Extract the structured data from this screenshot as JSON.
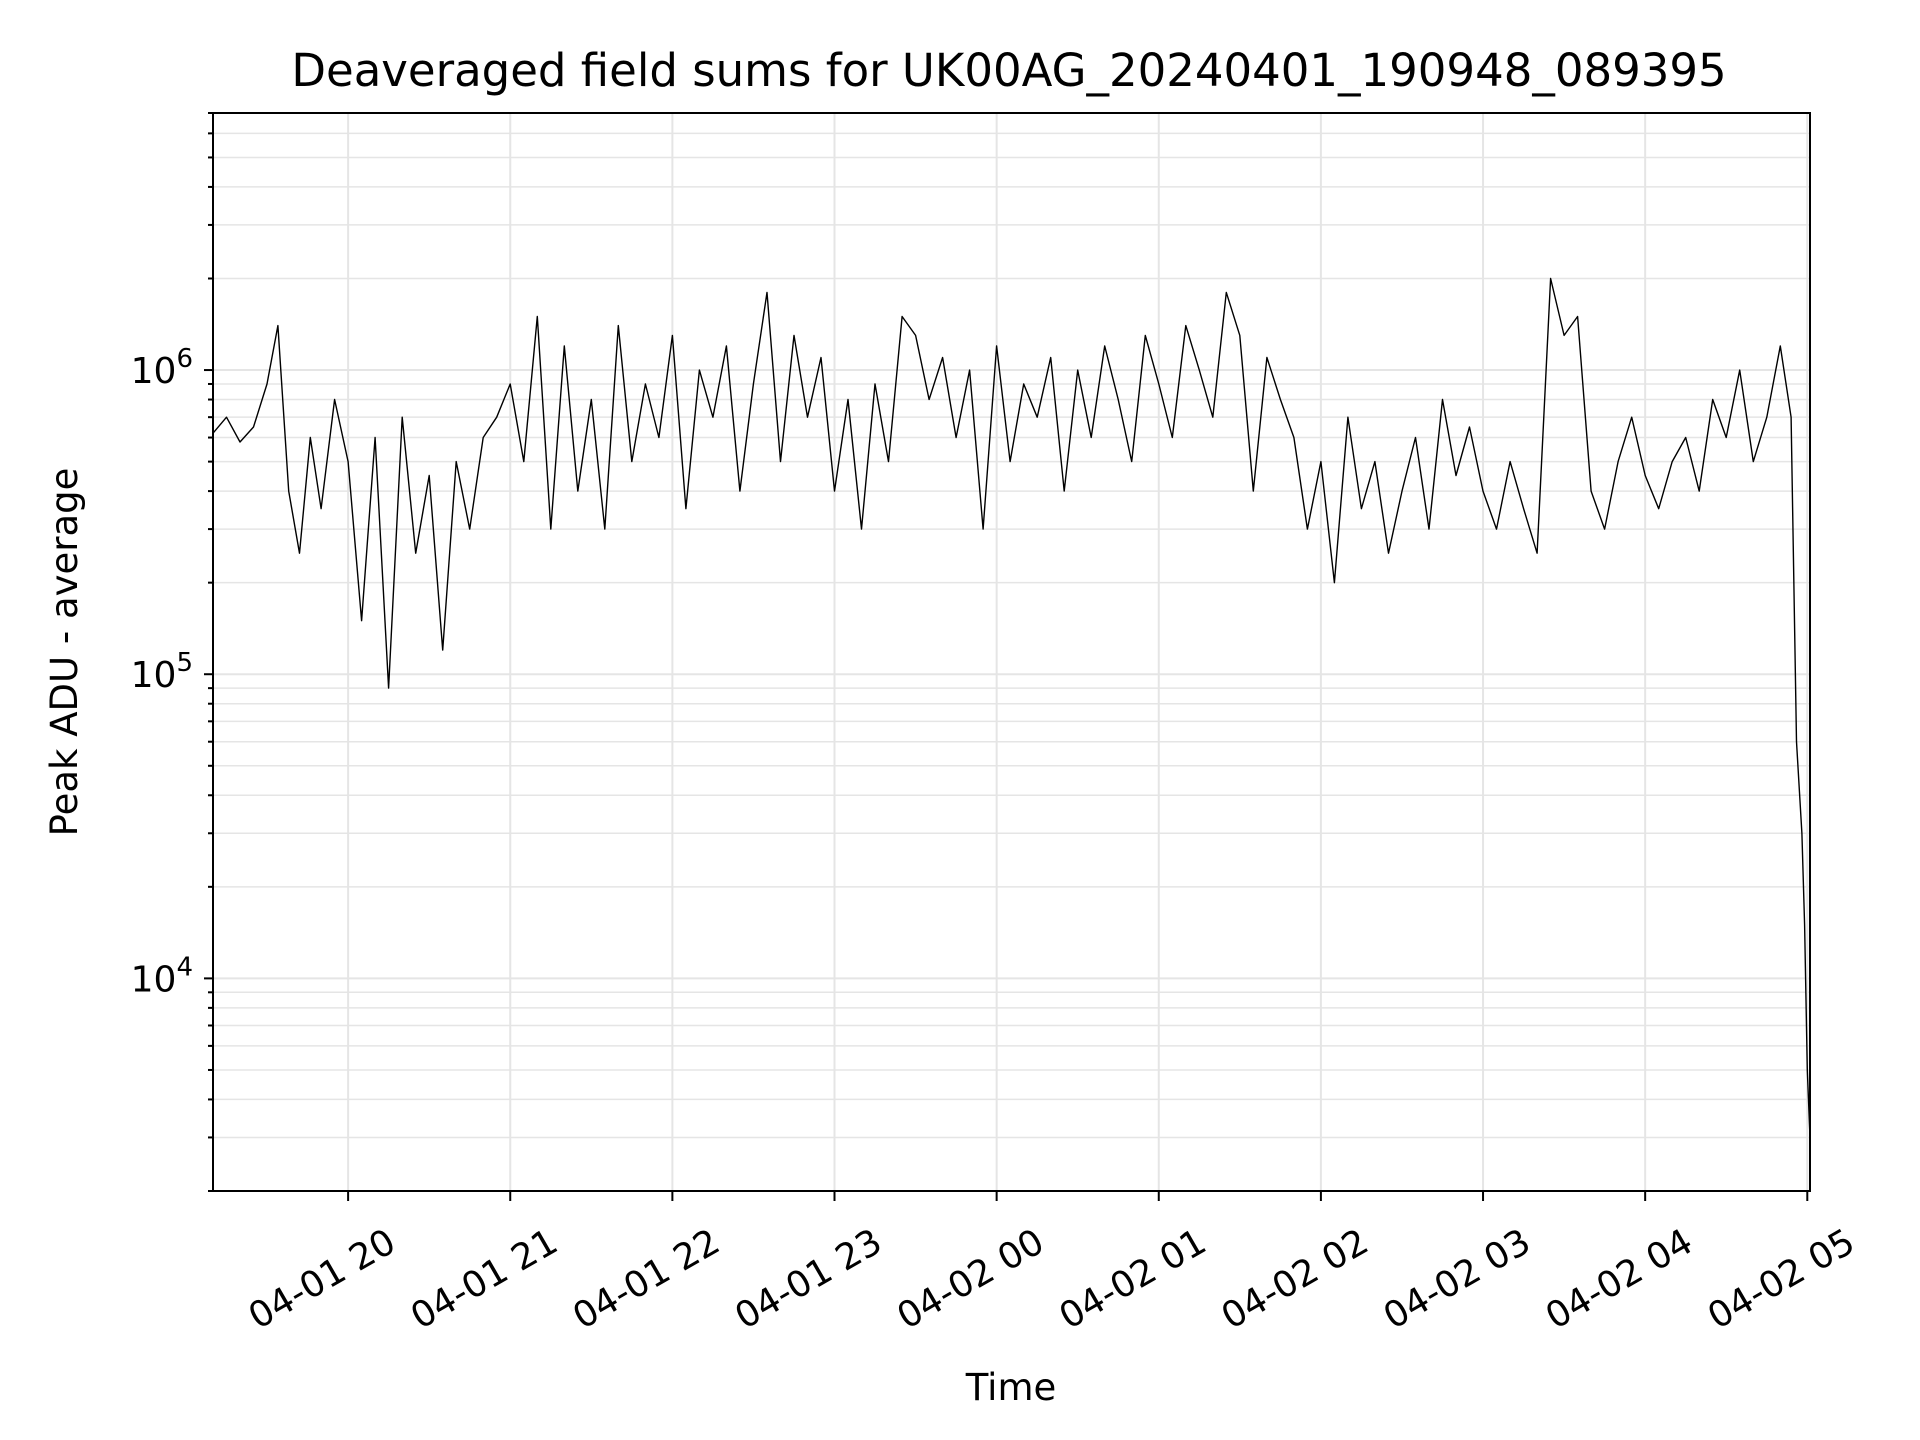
{
  "chart_data": {
    "type": "line",
    "title": "Deaveraged field sums for UK00AG_20240401_190948_089395",
    "xlabel": "Time",
    "ylabel": "Peak ADU - average",
    "xscale": "time",
    "yscale": "log",
    "x_range": [
      "2024-04-01 19:10",
      "2024-04-02 05:01"
    ],
    "y_range": [
      2000,
      7000000
    ],
    "x_tick_labels": [
      "04-01 20",
      "04-01 21",
      "04-01 22",
      "04-01 23",
      "04-02 00",
      "04-02 01",
      "04-02 02",
      "04-02 03",
      "04-02 04",
      "04-02 05"
    ],
    "y_tick_labels": [
      {
        "base": "10",
        "exp": "4"
      },
      {
        "base": "10",
        "exp": "5"
      },
      {
        "base": "10",
        "exp": "6"
      }
    ],
    "grid": true,
    "legend": "none",
    "line_color": "#000000",
    "grid_color": "#e5e5e5",
    "series": [
      {
        "x": [
          "2024-04-01 19:10",
          "2024-04-01 19:15",
          "2024-04-01 19:20",
          "2024-04-01 19:25",
          "2024-04-01 19:30",
          "2024-04-01 19:34",
          "2024-04-01 19:38",
          "2024-04-01 19:42",
          "2024-04-01 19:46",
          "2024-04-01 19:50",
          "2024-04-01 19:55",
          "2024-04-01 20:00",
          "2024-04-01 20:05",
          "2024-04-01 20:10",
          "2024-04-01 20:15",
          "2024-04-01 20:20",
          "2024-04-01 20:25",
          "2024-04-01 20:30",
          "2024-04-01 20:35",
          "2024-04-01 20:40",
          "2024-04-01 20:45",
          "2024-04-01 20:50",
          "2024-04-01 20:55",
          "2024-04-01 21:00",
          "2024-04-01 21:05",
          "2024-04-01 21:10",
          "2024-04-01 21:15",
          "2024-04-01 21:20",
          "2024-04-01 21:25",
          "2024-04-01 21:30",
          "2024-04-01 21:35",
          "2024-04-01 21:40",
          "2024-04-01 21:45",
          "2024-04-01 21:50",
          "2024-04-01 21:55",
          "2024-04-01 22:00",
          "2024-04-01 22:05",
          "2024-04-01 22:10",
          "2024-04-01 22:15",
          "2024-04-01 22:20",
          "2024-04-01 22:25",
          "2024-04-01 22:30",
          "2024-04-01 22:35",
          "2024-04-01 22:40",
          "2024-04-01 22:45",
          "2024-04-01 22:50",
          "2024-04-01 22:55",
          "2024-04-01 23:00",
          "2024-04-01 23:05",
          "2024-04-01 23:10",
          "2024-04-01 23:15",
          "2024-04-01 23:20",
          "2024-04-01 23:25",
          "2024-04-01 23:30",
          "2024-04-01 23:35",
          "2024-04-01 23:40",
          "2024-04-01 23:45",
          "2024-04-01 23:50",
          "2024-04-01 23:55",
          "2024-04-02 00:00",
          "2024-04-02 00:05",
          "2024-04-02 00:10",
          "2024-04-02 00:15",
          "2024-04-02 00:20",
          "2024-04-02 00:25",
          "2024-04-02 00:30",
          "2024-04-02 00:35",
          "2024-04-02 00:40",
          "2024-04-02 00:45",
          "2024-04-02 00:50",
          "2024-04-02 00:55",
          "2024-04-02 01:00",
          "2024-04-02 01:05",
          "2024-04-02 01:10",
          "2024-04-02 01:15",
          "2024-04-02 01:20",
          "2024-04-02 01:25",
          "2024-04-02 01:30",
          "2024-04-02 01:35",
          "2024-04-02 01:40",
          "2024-04-02 01:45",
          "2024-04-02 01:50",
          "2024-04-02 01:55",
          "2024-04-02 02:00",
          "2024-04-02 02:05",
          "2024-04-02 02:10",
          "2024-04-02 02:15",
          "2024-04-02 02:20",
          "2024-04-02 02:25",
          "2024-04-02 02:30",
          "2024-04-02 02:35",
          "2024-04-02 02:40",
          "2024-04-02 02:45",
          "2024-04-02 02:50",
          "2024-04-02 02:55",
          "2024-04-02 03:00",
          "2024-04-02 03:05",
          "2024-04-02 03:10",
          "2024-04-02 03:15",
          "2024-04-02 03:20",
          "2024-04-02 03:25",
          "2024-04-02 03:30",
          "2024-04-02 03:35",
          "2024-04-02 03:40",
          "2024-04-02 03:45",
          "2024-04-02 03:50",
          "2024-04-02 03:55",
          "2024-04-02 04:00",
          "2024-04-02 04:05",
          "2024-04-02 04:10",
          "2024-04-02 04:15",
          "2024-04-02 04:20",
          "2024-04-02 04:25",
          "2024-04-02 04:30",
          "2024-04-02 04:35",
          "2024-04-02 04:40",
          "2024-04-02 04:45",
          "2024-04-02 04:50",
          "2024-04-02 04:54",
          "2024-04-02 04:56",
          "2024-04-02 04:58",
          "2024-04-02 04:59",
          "2024-04-02 05:00",
          "2024-04-02 05:01"
        ],
        "y": [
          620000,
          700000,
          580000,
          650000,
          900000,
          1400000,
          400000,
          250000,
          600000,
          350000,
          800000,
          500000,
          150000,
          600000,
          90000,
          700000,
          250000,
          450000,
          120000,
          500000,
          300000,
          600000,
          700000,
          900000,
          500000,
          1500000,
          300000,
          1200000,
          400000,
          800000,
          300000,
          1400000,
          500000,
          900000,
          600000,
          1300000,
          350000,
          1000000,
          700000,
          1200000,
          400000,
          900000,
          1800000,
          500000,
          1300000,
          700000,
          1100000,
          400000,
          800000,
          300000,
          900000,
          500000,
          1500000,
          1300000,
          800000,
          1100000,
          600000,
          1000000,
          300000,
          1200000,
          500000,
          900000,
          700000,
          1100000,
          400000,
          1000000,
          600000,
          1200000,
          800000,
          500000,
          1300000,
          900000,
          600000,
          1400000,
          1000000,
          700000,
          1800000,
          1300000,
          400000,
          1100000,
          800000,
          600000,
          300000,
          500000,
          200000,
          700000,
          350000,
          500000,
          250000,
          400000,
          600000,
          300000,
          800000,
          450000,
          650000,
          400000,
          300000,
          500000,
          350000,
          250000,
          2000000,
          1300000,
          1500000,
          400000,
          300000,
          500000,
          700000,
          450000,
          350000,
          500000,
          600000,
          400000,
          800000,
          600000,
          1000000,
          500000,
          700000,
          1200000,
          700000,
          60000,
          30000,
          15000,
          5000,
          3000
        ]
      }
    ]
  }
}
